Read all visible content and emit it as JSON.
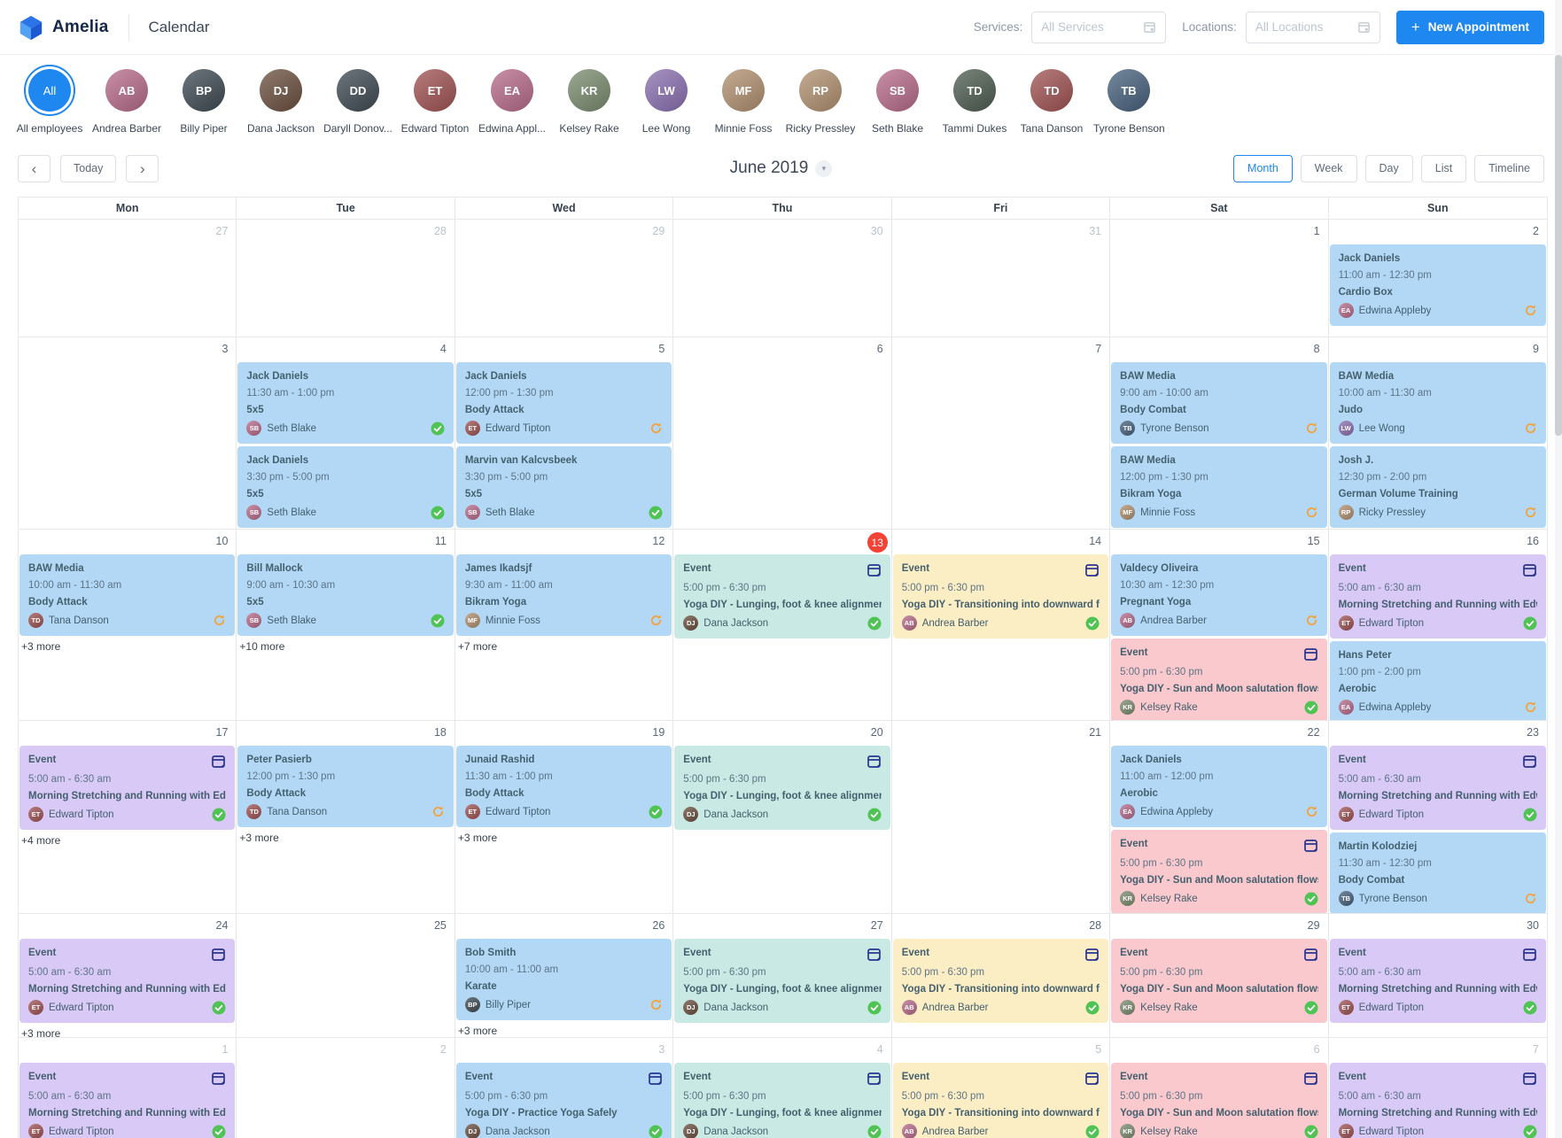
{
  "header": {
    "brand": "Amelia",
    "page_title": "Calendar",
    "services_label": "Services:",
    "services_placeholder": "All Services",
    "locations_label": "Locations:",
    "locations_placeholder": "All Locations",
    "new_appointment_label": "New Appointment"
  },
  "employees": [
    {
      "label": "All employees",
      "avatar_text": "All",
      "selected": true
    },
    {
      "label": "Andrea Barber"
    },
    {
      "label": "Billy Piper"
    },
    {
      "label": "Dana Jackson"
    },
    {
      "label": "Daryll Donov..."
    },
    {
      "label": "Edward Tipton"
    },
    {
      "label": "Edwina Appl..."
    },
    {
      "label": "Kelsey Rake"
    },
    {
      "label": "Lee Wong"
    },
    {
      "label": "Minnie Foss"
    },
    {
      "label": "Ricky Pressley"
    },
    {
      "label": "Seth Blake"
    },
    {
      "label": "Tammi Dukes"
    },
    {
      "label": "Tana Danson"
    },
    {
      "label": "Tyrone Benson"
    }
  ],
  "toolbar": {
    "today_label": "Today",
    "period_title": "June 2019",
    "views": [
      "Month",
      "Week",
      "Day",
      "List",
      "Timeline"
    ],
    "active_view": "Month"
  },
  "colors": {
    "accent_blue": "#1e87f0",
    "today_badge": "#f44336",
    "status_approved": "#4fc353",
    "status_pending": "#f2a33c",
    "event_calendar_icon": "#28348f",
    "card_blue": "#b3d8f6",
    "card_teal": "#c9e9e4",
    "card_yellow": "#fbeec5",
    "card_pink": "#f9c9cd",
    "card_purple": "#d8c9f6"
  },
  "calendar": {
    "day_headers": [
      "Mon",
      "Tue",
      "Wed",
      "Thu",
      "Fri",
      "Sat",
      "Sun"
    ],
    "weeks": [
      {
        "days": [
          {
            "n": "27",
            "muted": true,
            "events": []
          },
          {
            "n": "28",
            "muted": true,
            "events": []
          },
          {
            "n": "29",
            "muted": true,
            "events": []
          },
          {
            "n": "30",
            "muted": true,
            "events": []
          },
          {
            "n": "31",
            "muted": true,
            "events": []
          },
          {
            "n": "1",
            "events": []
          },
          {
            "n": "2",
            "events": [
              {
                "kind": "appt",
                "color": "blue",
                "title": "Jack Daniels",
                "time": "11:00 am - 12:30 pm",
                "service": "Cardio Box",
                "employee": "Edwina Appleby",
                "status": "pending"
              }
            ]
          }
        ]
      },
      {
        "days": [
          {
            "n": "3",
            "events": []
          },
          {
            "n": "4",
            "events": [
              {
                "kind": "appt",
                "color": "blue",
                "title": "Jack Daniels",
                "time": "11:30 am - 1:00 pm",
                "service": "5x5",
                "employee": "Seth Blake",
                "status": "approved"
              },
              {
                "kind": "appt",
                "color": "blue",
                "title": "Jack Daniels",
                "time": "3:30 pm - 5:00 pm",
                "service": "5x5",
                "employee": "Seth Blake",
                "status": "approved"
              }
            ]
          },
          {
            "n": "5",
            "events": [
              {
                "kind": "appt",
                "color": "blue",
                "title": "Jack Daniels",
                "time": "12:00 pm - 1:30 pm",
                "service": "Body Attack",
                "employee": "Edward Tipton",
                "status": "pending"
              },
              {
                "kind": "appt",
                "color": "blue",
                "title": "Marvin van Kalcvsbeek",
                "time": "3:30 pm - 5:00 pm",
                "service": "5x5",
                "employee": "Seth Blake",
                "status": "approved"
              }
            ]
          },
          {
            "n": "6",
            "events": []
          },
          {
            "n": "7",
            "events": []
          },
          {
            "n": "8",
            "events": [
              {
                "kind": "appt",
                "color": "blue",
                "title": "BAW Media",
                "time": "9:00 am - 10:00 am",
                "service": "Body Combat",
                "employee": "Tyrone Benson",
                "status": "pending"
              },
              {
                "kind": "appt",
                "color": "blue",
                "title": "BAW Media",
                "time": "12:00 pm - 1:30 pm",
                "service": "Bikram Yoga",
                "employee": "Minnie Foss",
                "status": "pending"
              }
            ]
          },
          {
            "n": "9",
            "events": [
              {
                "kind": "appt",
                "color": "blue",
                "title": "BAW Media",
                "time": "10:00 am - 11:30 am",
                "service": "Judo",
                "employee": "Lee Wong",
                "status": "pending"
              },
              {
                "kind": "appt",
                "color": "blue",
                "title": "Josh J.",
                "time": "12:30 pm - 2:00 pm",
                "service": "German Volume Training",
                "employee": "Ricky Pressley",
                "status": "pending"
              }
            ]
          }
        ]
      },
      {
        "days": [
          {
            "n": "10",
            "more": "+3 more",
            "events": [
              {
                "kind": "appt",
                "color": "blue",
                "title": "BAW Media",
                "time": "10:00 am - 11:30 am",
                "service": "Body Attack",
                "employee": "Tana Danson",
                "status": "pending"
              }
            ]
          },
          {
            "n": "11",
            "more": "+10 more",
            "events": [
              {
                "kind": "appt",
                "color": "blue",
                "title": "Bill Mallock",
                "time": "9:00 am - 10:30 am",
                "service": "5x5",
                "employee": "Seth Blake",
                "status": "approved"
              }
            ]
          },
          {
            "n": "12",
            "more": "+7 more",
            "events": [
              {
                "kind": "appt",
                "color": "blue",
                "title": "James Ikadsjf",
                "time": "9:30 am - 11:00 am",
                "service": "Bikram Yoga",
                "employee": "Minnie Foss",
                "status": "pending"
              }
            ]
          },
          {
            "n": "13",
            "today": true,
            "events": [
              {
                "kind": "event",
                "color": "teal",
                "title": "Event",
                "time": "5:00 pm - 6:30 pm",
                "service": "Yoga DIY - Lunging, foot & knee alignment and brea...",
                "employee": "Dana Jackson",
                "status": "approved"
              }
            ]
          },
          {
            "n": "14",
            "events": [
              {
                "kind": "event",
                "color": "yellow",
                "title": "Event",
                "time": "5:00 pm - 6:30 pm",
                "service": "Yoga DIY - Transitioning into downward facing dog",
                "employee": "Andrea Barber",
                "status": "approved"
              }
            ]
          },
          {
            "n": "15",
            "events": [
              {
                "kind": "appt",
                "color": "blue",
                "title": "Valdecy Oliveira",
                "time": "10:30 am - 12:30 pm",
                "service": "Pregnant Yoga",
                "employee": "Andrea Barber",
                "status": "pending"
              },
              {
                "kind": "event",
                "color": "pink",
                "title": "Event",
                "time": "5:00 pm - 6:30 pm",
                "service": "Yoga DIY - Sun and Moon salutation flows for every ...",
                "employee": "Kelsey Rake",
                "status": "approved"
              }
            ]
          },
          {
            "n": "16",
            "events": [
              {
                "kind": "event",
                "color": "purple",
                "title": "Event",
                "time": "5:00 am - 6:30 am",
                "service": "Morning Stretching and Running with Edward Tipton",
                "employee": "Edward Tipton",
                "status": "approved"
              },
              {
                "kind": "appt",
                "color": "blue",
                "title": "Hans Peter",
                "time": "1:00 pm - 2:00 pm",
                "service": "Aerobic",
                "employee": "Edwina Appleby",
                "status": "pending"
              }
            ]
          }
        ]
      },
      {
        "days": [
          {
            "n": "17",
            "more": "+4 more",
            "events": [
              {
                "kind": "event",
                "color": "purple",
                "title": "Event",
                "time": "5:00 am - 6:30 am",
                "service": "Morning Stretching and Running with Edward Tipton",
                "employee": "Edward Tipton",
                "status": "approved"
              }
            ]
          },
          {
            "n": "18",
            "more": "+3 more",
            "events": [
              {
                "kind": "appt",
                "color": "blue",
                "title": "Peter Pasierb",
                "time": "12:00 pm - 1:30 pm",
                "service": "Body Attack",
                "employee": "Tana Danson",
                "status": "pending"
              }
            ]
          },
          {
            "n": "19",
            "more": "+3 more",
            "events": [
              {
                "kind": "appt",
                "color": "blue",
                "title": "Junaid Rashid",
                "time": "11:30 am - 1:00 pm",
                "service": "Body Attack",
                "employee": "Edward Tipton",
                "status": "approved"
              }
            ]
          },
          {
            "n": "20",
            "events": [
              {
                "kind": "event",
                "color": "teal",
                "title": "Event",
                "time": "5:00 pm - 6:30 pm",
                "service": "Yoga DIY - Lunging, foot & knee alignment and brea...",
                "employee": "Dana Jackson",
                "status": "approved"
              }
            ]
          },
          {
            "n": "21",
            "events": []
          },
          {
            "n": "22",
            "events": [
              {
                "kind": "appt",
                "color": "blue",
                "title": "Jack Daniels",
                "time": "11:00 am - 12:00 pm",
                "service": "Aerobic",
                "employee": "Edwina Appleby",
                "status": "pending"
              },
              {
                "kind": "event",
                "color": "pink",
                "title": "Event",
                "time": "5:00 pm - 6:30 pm",
                "service": "Yoga DIY - Sun and Moon salutation flows for every ...",
                "employee": "Kelsey Rake",
                "status": "approved"
              }
            ]
          },
          {
            "n": "23",
            "events": [
              {
                "kind": "event",
                "color": "purple",
                "title": "Event",
                "time": "5:00 am - 6:30 am",
                "service": "Morning Stretching and Running with Edward Tipton",
                "employee": "Edward Tipton",
                "status": "approved"
              },
              {
                "kind": "appt",
                "color": "blue",
                "title": "Martin Kolodziej",
                "time": "11:30 am - 12:30 pm",
                "service": "Body Combat",
                "employee": "Tyrone Benson",
                "status": "pending"
              }
            ]
          }
        ]
      },
      {
        "days": [
          {
            "n": "24",
            "more": "+3 more",
            "events": [
              {
                "kind": "event",
                "color": "purple",
                "title": "Event",
                "time": "5:00 am - 6:30 am",
                "service": "Morning Stretching and Running with Edward Tipton",
                "employee": "Edward Tipton",
                "status": "approved"
              }
            ]
          },
          {
            "n": "25",
            "events": []
          },
          {
            "n": "26",
            "more": "+3 more",
            "events": [
              {
                "kind": "appt",
                "color": "blue",
                "title": "Bob Smith",
                "time": "10:00 am - 11:00 am",
                "service": "Karate",
                "employee": "Billy Piper",
                "status": "pending"
              }
            ]
          },
          {
            "n": "27",
            "events": [
              {
                "kind": "event",
                "color": "teal",
                "title": "Event",
                "time": "5:00 pm - 6:30 pm",
                "service": "Yoga DIY - Lunging, foot & knee alignment and brea...",
                "employee": "Dana Jackson",
                "status": "approved"
              }
            ]
          },
          {
            "n": "28",
            "events": [
              {
                "kind": "event",
                "color": "yellow",
                "title": "Event",
                "time": "5:00 pm - 6:30 pm",
                "service": "Yoga DIY - Transitioning into downward facing dog",
                "employee": "Andrea Barber",
                "status": "approved"
              }
            ]
          },
          {
            "n": "29",
            "events": [
              {
                "kind": "event",
                "color": "pink",
                "title": "Event",
                "time": "5:00 pm - 6:30 pm",
                "service": "Yoga DIY - Sun and Moon salutation flows for every ...",
                "employee": "Kelsey Rake",
                "status": "approved"
              }
            ]
          },
          {
            "n": "30",
            "events": [
              {
                "kind": "event",
                "color": "purple",
                "title": "Event",
                "time": "5:00 am - 6:30 am",
                "service": "Morning Stretching and Running with Edward Tipton",
                "employee": "Edward Tipton",
                "status": "approved"
              }
            ]
          }
        ]
      },
      {
        "days": [
          {
            "n": "1",
            "muted": true,
            "events": [
              {
                "kind": "event",
                "color": "purple",
                "title": "Event",
                "time": "5:00 am - 6:30 am",
                "service": "Morning Stretching and Running with Edward Tipton",
                "employee": "Edward Tipton",
                "status": "approved"
              }
            ]
          },
          {
            "n": "2",
            "muted": true,
            "events": []
          },
          {
            "n": "3",
            "muted": true,
            "events": [
              {
                "kind": "event",
                "color": "blue",
                "title": "Event",
                "time": "5:00 pm - 6:30 pm",
                "service": "Yoga DIY - Practice Yoga Safely",
                "employee": "Dana Jackson",
                "status": "approved"
              }
            ]
          },
          {
            "n": "4",
            "muted": true,
            "events": [
              {
                "kind": "event",
                "color": "teal",
                "title": "Event",
                "time": "5:00 pm - 6:30 pm",
                "service": "Yoga DIY - Lunging, foot & knee alignment and brea...",
                "employee": "Dana Jackson",
                "status": "approved"
              }
            ]
          },
          {
            "n": "5",
            "muted": true,
            "events": [
              {
                "kind": "event",
                "color": "yellow",
                "title": "Event",
                "time": "5:00 pm - 6:30 pm",
                "service": "Yoga DIY - Transitioning into downward facing dog",
                "employee": "Andrea Barber",
                "status": "approved"
              }
            ]
          },
          {
            "n": "6",
            "muted": true,
            "events": [
              {
                "kind": "event",
                "color": "pink",
                "title": "Event",
                "time": "5:00 pm - 6:30 pm",
                "service": "Yoga DIY - Sun and Moon salutation flows for every ...",
                "employee": "Kelsey Rake",
                "status": "approved"
              }
            ]
          },
          {
            "n": "7",
            "muted": true,
            "events": [
              {
                "kind": "event",
                "color": "purple",
                "title": "Event",
                "time": "5:00 am - 6:30 am",
                "service": "Morning Stretching and Running with Edward Tipton",
                "employee": "Edward Tipton",
                "status": "approved"
              }
            ]
          }
        ]
      }
    ]
  }
}
